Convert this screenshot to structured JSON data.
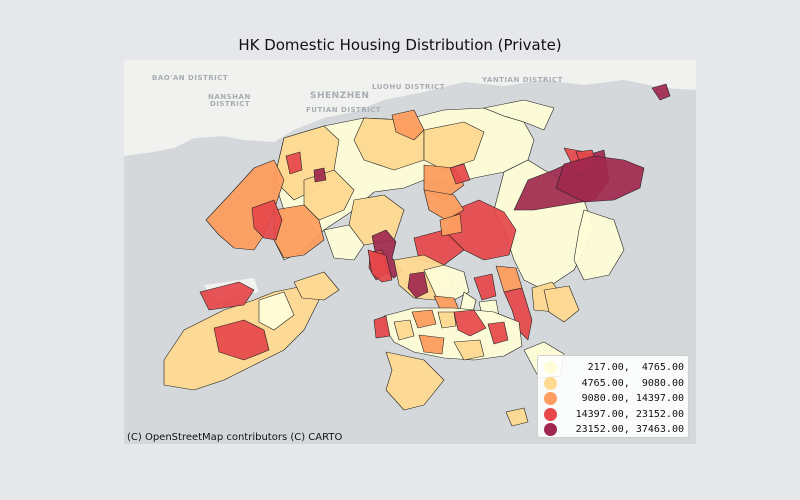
{
  "title": "HK Domestic Housing Distribution (Private)",
  "attribution": "(C) OpenStreetMap contributors (C) CARTO",
  "basemap": {
    "water_color": "#d4d8da",
    "land_color": "#f1f1ef",
    "labels": [
      "BAO'AN DISTRICT",
      "NANSHAN",
      "DISTRICT",
      "SHENZHEN",
      "LUOHU DISTRICT",
      "FUTIAN DISTRICT",
      "YANTIAN DISTRICT"
    ]
  },
  "legend": {
    "items": [
      {
        "label": "  217.00,  4765.00",
        "color": "#fefdd8"
      },
      {
        "label": " 4765.00,  9080.00",
        "color": "#fed990"
      },
      {
        "label": " 9080.00, 14397.00",
        "color": "#fd9d5f"
      },
      {
        "label": "14397.00, 23152.00",
        "color": "#e6474a"
      },
      {
        "label": "23152.00, 37463.00",
        "color": "#a0284e"
      }
    ]
  }
}
